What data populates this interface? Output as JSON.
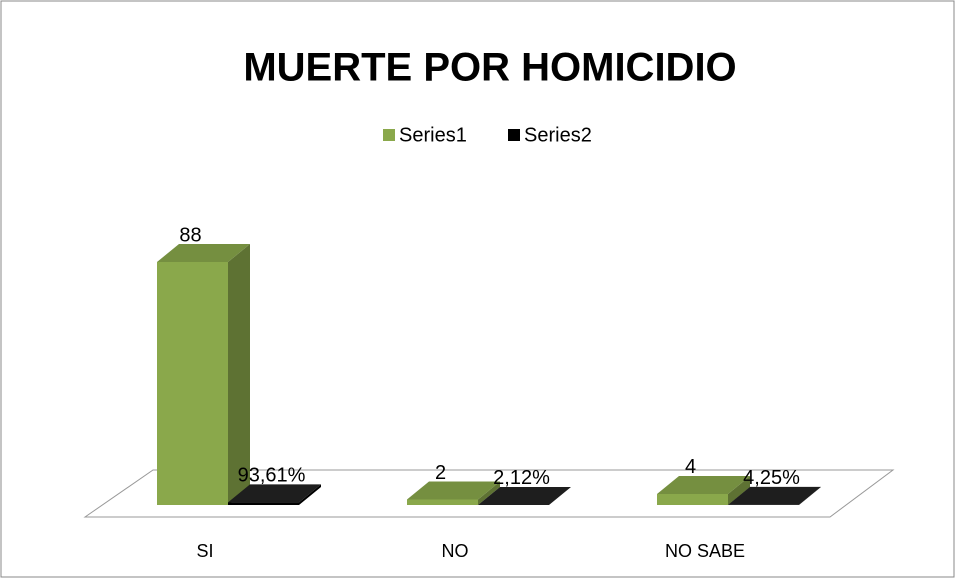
{
  "chart_data": {
    "type": "bar3d",
    "title": "MUERTE POR HOMICIDIO",
    "categories": [
      "SI",
      "NO",
      "NO SABE"
    ],
    "series": [
      {
        "name": "Series1",
        "color": "#8aa84b",
        "values": [
          88,
          2,
          4
        ],
        "value_labels": [
          "88",
          "2",
          "4"
        ]
      },
      {
        "name": "Series2",
        "color": "#000000",
        "values": [
          0.9361,
          0.0212,
          0.0425
        ],
        "value_labels": [
          "93,61%",
          "2,12%",
          "4,25%"
        ]
      }
    ]
  }
}
